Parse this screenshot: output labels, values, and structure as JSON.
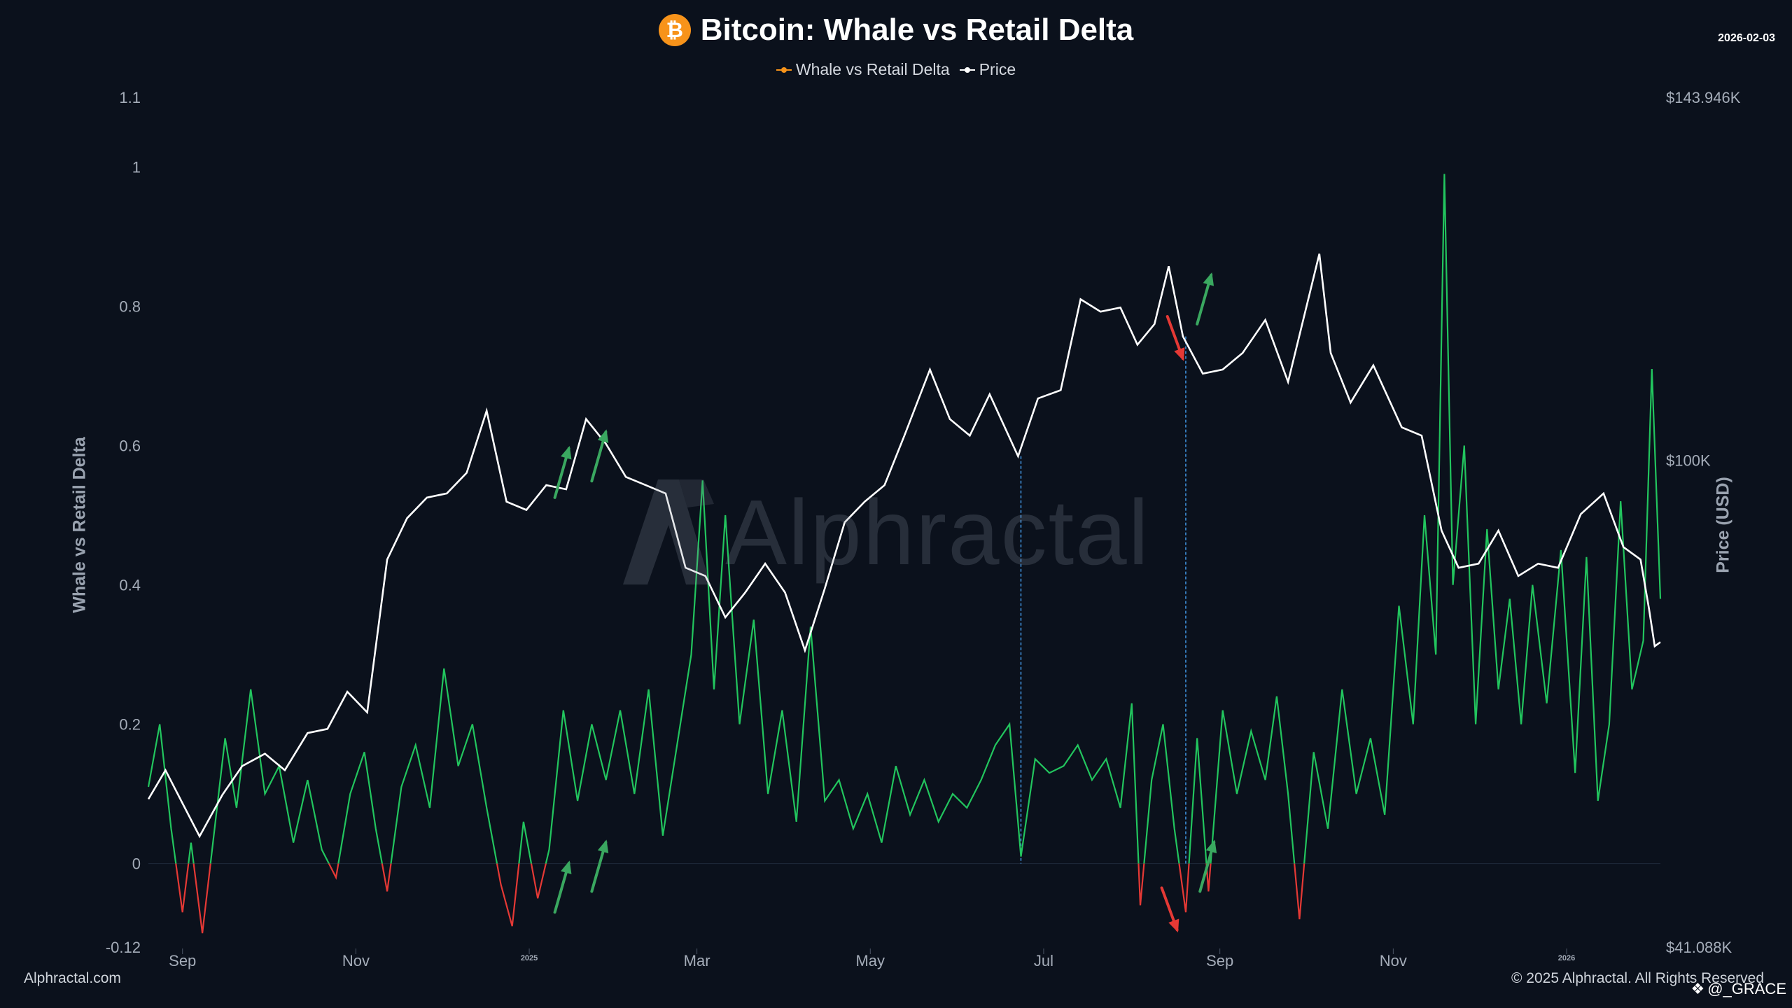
{
  "title": "Bitcoin: Whale vs Retail Delta",
  "icon": "bitcoin-icon",
  "date": "2026-02-03",
  "legend": [
    {
      "label": "Whale vs Retail Delta",
      "color": "#f7931a"
    },
    {
      "label": "Price",
      "color": "#ffffff"
    }
  ],
  "watermark": "Alphractal",
  "footer_left": "Alphractal.com",
  "footer_right": "© 2025 Alphractal. All Rights Reserved",
  "credit": "@_GRACE",
  "chart_data": {
    "type": "line",
    "ylabel": "Whale vs Retail Delta",
    "y2label": "Price (USD)",
    "ylim": [
      -0.12,
      1.1
    ],
    "y2lim": [
      41088,
      143946
    ],
    "yticks": [
      "1.1",
      "1",
      "0.8",
      "0.6",
      "0.4",
      "0.2",
      "0",
      "-0.12"
    ],
    "yticks_values": [
      1.1,
      1,
      0.8,
      0.6,
      0.4,
      0.2,
      0,
      -0.12
    ],
    "y2ticks": [
      "$143.946K",
      "$100K",
      "$41.088K"
    ],
    "y2ticks_values": [
      143946,
      100000,
      41088
    ],
    "x_range": [
      "2024-08-20",
      "2026-02-03"
    ],
    "xticks": [
      {
        "label": "Sep",
        "date": "2024-09-01"
      },
      {
        "label": "Nov",
        "date": "2024-11-01"
      },
      {
        "label": "2025",
        "date": "2025-01-01",
        "small": true
      },
      {
        "label": "Mar",
        "date": "2025-03-01"
      },
      {
        "label": "May",
        "date": "2025-05-01"
      },
      {
        "label": "Jul",
        "date": "2025-07-01"
      },
      {
        "label": "Sep",
        "date": "2025-09-01"
      },
      {
        "label": "Nov",
        "date": "2025-11-01"
      },
      {
        "label": "2026",
        "date": "2026-01-01",
        "small": true
      }
    ],
    "colors": {
      "positive": "#22c55e",
      "negative": "#e53935",
      "price": "#ffffff",
      "guide": "#3f8fd9",
      "arrow_up": "#3aa860",
      "arrow_down": "#e53935"
    },
    "series": [
      {
        "name": "Price",
        "axis": "right",
        "points": [
          [
            "2024-08-20",
            59000
          ],
          [
            "2024-08-26",
            62500
          ],
          [
            "2024-09-01",
            58500
          ],
          [
            "2024-09-07",
            54500
          ],
          [
            "2024-09-15",
            59500
          ],
          [
            "2024-09-22",
            63000
          ],
          [
            "2024-09-30",
            64500
          ],
          [
            "2024-10-07",
            62500
          ],
          [
            "2024-10-15",
            67000
          ],
          [
            "2024-10-22",
            67500
          ],
          [
            "2024-10-29",
            72000
          ],
          [
            "2024-11-05",
            69500
          ],
          [
            "2024-11-12",
            88000
          ],
          [
            "2024-11-19",
            93000
          ],
          [
            "2024-11-26",
            95500
          ],
          [
            "2024-12-03",
            96000
          ],
          [
            "2024-12-10",
            98500
          ],
          [
            "2024-12-17",
            106000
          ],
          [
            "2024-12-24",
            95000
          ],
          [
            "2024-12-31",
            94000
          ],
          [
            "2025-01-07",
            97000
          ],
          [
            "2025-01-14",
            96500
          ],
          [
            "2025-01-21",
            105000
          ],
          [
            "2025-01-28",
            102000
          ],
          [
            "2025-02-04",
            98000
          ],
          [
            "2025-02-11",
            97000
          ],
          [
            "2025-02-18",
            96000
          ],
          [
            "2025-02-25",
            87000
          ],
          [
            "2025-03-04",
            86000
          ],
          [
            "2025-03-11",
            81000
          ],
          [
            "2025-03-18",
            84000
          ],
          [
            "2025-03-25",
            87500
          ],
          [
            "2025-04-01",
            84000
          ],
          [
            "2025-04-08",
            77000
          ],
          [
            "2025-04-15",
            84500
          ],
          [
            "2025-04-22",
            92500
          ],
          [
            "2025-04-29",
            95000
          ],
          [
            "2025-05-06",
            97000
          ],
          [
            "2025-05-13",
            103000
          ],
          [
            "2025-05-22",
            111000
          ],
          [
            "2025-05-29",
            105000
          ],
          [
            "2025-06-05",
            103000
          ],
          [
            "2025-06-12",
            108000
          ],
          [
            "2025-06-22",
            100500
          ],
          [
            "2025-06-29",
            107500
          ],
          [
            "2025-07-07",
            108500
          ],
          [
            "2025-07-14",
            119500
          ],
          [
            "2025-07-21",
            118000
          ],
          [
            "2025-07-28",
            118500
          ],
          [
            "2025-08-03",
            114000
          ],
          [
            "2025-08-09",
            116500
          ],
          [
            "2025-08-14",
            123500
          ],
          [
            "2025-08-19",
            115000
          ],
          [
            "2025-08-26",
            110500
          ],
          [
            "2025-09-02",
            111000
          ],
          [
            "2025-09-09",
            113000
          ],
          [
            "2025-09-17",
            117000
          ],
          [
            "2025-09-25",
            109500
          ],
          [
            "2025-10-06",
            125000
          ],
          [
            "2025-10-10",
            113000
          ],
          [
            "2025-10-17",
            107000
          ],
          [
            "2025-10-25",
            111500
          ],
          [
            "2025-11-04",
            104000
          ],
          [
            "2025-11-11",
            103000
          ],
          [
            "2025-11-18",
            91500
          ],
          [
            "2025-11-24",
            87000
          ],
          [
            "2025-12-01",
            87500
          ],
          [
            "2025-12-08",
            91500
          ],
          [
            "2025-12-15",
            86000
          ],
          [
            "2025-12-22",
            87500
          ],
          [
            "2025-12-29",
            87000
          ],
          [
            "2026-01-06",
            93500
          ],
          [
            "2026-01-14",
            96000
          ],
          [
            "2026-01-21",
            89500
          ],
          [
            "2026-01-27",
            88000
          ],
          [
            "2026-01-30",
            82000
          ],
          [
            "2026-02-01",
            77500
          ],
          [
            "2026-02-03",
            78000
          ]
        ]
      },
      {
        "name": "Whale vs Retail Delta",
        "axis": "left",
        "points": [
          [
            "2024-08-20",
            0.11
          ],
          [
            "2024-08-24",
            0.2
          ],
          [
            "2024-08-28",
            0.05
          ],
          [
            "2024-09-01",
            -0.07
          ],
          [
            "2024-09-04",
            0.03
          ],
          [
            "2024-09-08",
            -0.1
          ],
          [
            "2024-09-12",
            0.04
          ],
          [
            "2024-09-16",
            0.18
          ],
          [
            "2024-09-20",
            0.08
          ],
          [
            "2024-09-25",
            0.25
          ],
          [
            "2024-09-30",
            0.1
          ],
          [
            "2024-10-05",
            0.14
          ],
          [
            "2024-10-10",
            0.03
          ],
          [
            "2024-10-15",
            0.12
          ],
          [
            "2024-10-20",
            0.02
          ],
          [
            "2024-10-25",
            -0.02
          ],
          [
            "2024-10-30",
            0.1
          ],
          [
            "2024-11-04",
            0.16
          ],
          [
            "2024-11-08",
            0.05
          ],
          [
            "2024-11-12",
            -0.04
          ],
          [
            "2024-11-17",
            0.11
          ],
          [
            "2024-11-22",
            0.17
          ],
          [
            "2024-11-27",
            0.08
          ],
          [
            "2024-12-02",
            0.28
          ],
          [
            "2024-12-07",
            0.14
          ],
          [
            "2024-12-12",
            0.2
          ],
          [
            "2024-12-17",
            0.08
          ],
          [
            "2024-12-22",
            -0.03
          ],
          [
            "2024-12-26",
            -0.09
          ],
          [
            "2024-12-30",
            0.06
          ],
          [
            "2025-01-04",
            -0.05
          ],
          [
            "2025-01-08",
            0.02
          ],
          [
            "2025-01-13",
            0.22
          ],
          [
            "2025-01-18",
            0.09
          ],
          [
            "2025-01-23",
            0.2
          ],
          [
            "2025-01-28",
            0.12
          ],
          [
            "2025-02-02",
            0.22
          ],
          [
            "2025-02-07",
            0.1
          ],
          [
            "2025-02-12",
            0.25
          ],
          [
            "2025-02-17",
            0.04
          ],
          [
            "2025-02-22",
            0.17
          ],
          [
            "2025-02-27",
            0.3
          ],
          [
            "2025-03-03",
            0.55
          ],
          [
            "2025-03-07",
            0.25
          ],
          [
            "2025-03-11",
            0.5
          ],
          [
            "2025-03-16",
            0.2
          ],
          [
            "2025-03-21",
            0.35
          ],
          [
            "2025-03-26",
            0.1
          ],
          [
            "2025-03-31",
            0.22
          ],
          [
            "2025-04-05",
            0.06
          ],
          [
            "2025-04-10",
            0.34
          ],
          [
            "2025-04-15",
            0.09
          ],
          [
            "2025-04-20",
            0.12
          ],
          [
            "2025-04-25",
            0.05
          ],
          [
            "2025-04-30",
            0.1
          ],
          [
            "2025-05-05",
            0.03
          ],
          [
            "2025-05-10",
            0.14
          ],
          [
            "2025-05-15",
            0.07
          ],
          [
            "2025-05-20",
            0.12
          ],
          [
            "2025-05-25",
            0.06
          ],
          [
            "2025-05-30",
            0.1
          ],
          [
            "2025-06-04",
            0.08
          ],
          [
            "2025-06-09",
            0.12
          ],
          [
            "2025-06-14",
            0.17
          ],
          [
            "2025-06-19",
            0.2
          ],
          [
            "2025-06-23",
            0.01
          ],
          [
            "2025-06-28",
            0.15
          ],
          [
            "2025-07-03",
            0.13
          ],
          [
            "2025-07-08",
            0.14
          ],
          [
            "2025-07-13",
            0.17
          ],
          [
            "2025-07-18",
            0.12
          ],
          [
            "2025-07-23",
            0.15
          ],
          [
            "2025-07-28",
            0.08
          ],
          [
            "2025-08-01",
            0.23
          ],
          [
            "2025-08-04",
            -0.06
          ],
          [
            "2025-08-08",
            0.12
          ],
          [
            "2025-08-12",
            0.2
          ],
          [
            "2025-08-16",
            0.05
          ],
          [
            "2025-08-20",
            -0.07
          ],
          [
            "2025-08-24",
            0.18
          ],
          [
            "2025-08-28",
            -0.04
          ],
          [
            "2025-09-02",
            0.22
          ],
          [
            "2025-09-07",
            0.1
          ],
          [
            "2025-09-12",
            0.19
          ],
          [
            "2025-09-17",
            0.12
          ],
          [
            "2025-09-21",
            0.24
          ],
          [
            "2025-09-25",
            0.1
          ],
          [
            "2025-09-29",
            -0.08
          ],
          [
            "2025-10-04",
            0.16
          ],
          [
            "2025-10-09",
            0.05
          ],
          [
            "2025-10-14",
            0.25
          ],
          [
            "2025-10-19",
            0.1
          ],
          [
            "2025-10-24",
            0.18
          ],
          [
            "2025-10-29",
            0.07
          ],
          [
            "2025-11-03",
            0.37
          ],
          [
            "2025-11-08",
            0.2
          ],
          [
            "2025-11-12",
            0.5
          ],
          [
            "2025-11-16",
            0.3
          ],
          [
            "2025-11-19",
            0.99
          ],
          [
            "2025-11-22",
            0.4
          ],
          [
            "2025-11-26",
            0.6
          ],
          [
            "2025-11-30",
            0.2
          ],
          [
            "2025-12-04",
            0.48
          ],
          [
            "2025-12-08",
            0.25
          ],
          [
            "2025-12-12",
            0.38
          ],
          [
            "2025-12-16",
            0.2
          ],
          [
            "2025-12-20",
            0.4
          ],
          [
            "2025-12-25",
            0.23
          ],
          [
            "2025-12-30",
            0.45
          ],
          [
            "2026-01-04",
            0.13
          ],
          [
            "2026-01-08",
            0.44
          ],
          [
            "2026-01-12",
            0.09
          ],
          [
            "2026-01-16",
            0.2
          ],
          [
            "2026-01-20",
            0.52
          ],
          [
            "2026-01-24",
            0.25
          ],
          [
            "2026-01-28",
            0.32
          ],
          [
            "2026-01-31",
            0.71
          ],
          [
            "2026-02-03",
            0.38
          ]
        ]
      }
    ],
    "guides": [
      "2025-06-23",
      "2025-08-20"
    ],
    "arrows": [
      {
        "dir": "up",
        "axis": "left",
        "date": "2025-01-10",
        "value": -0.07
      },
      {
        "dir": "up",
        "axis": "left",
        "date": "2025-01-23",
        "value": -0.04
      },
      {
        "dir": "up",
        "axis": "right",
        "date": "2025-01-10",
        "value": 95500
      },
      {
        "dir": "up",
        "axis": "right",
        "date": "2025-01-23",
        "value": 97500
      },
      {
        "dir": "down",
        "axis": "left",
        "date": "2025-08-14",
        "value": -0.04
      },
      {
        "dir": "up",
        "axis": "left",
        "date": "2025-08-25",
        "value": -0.04
      },
      {
        "dir": "down",
        "axis": "right",
        "date": "2025-08-16",
        "value": 117000
      },
      {
        "dir": "up",
        "axis": "right",
        "date": "2025-08-24",
        "value": 116500
      }
    ]
  }
}
